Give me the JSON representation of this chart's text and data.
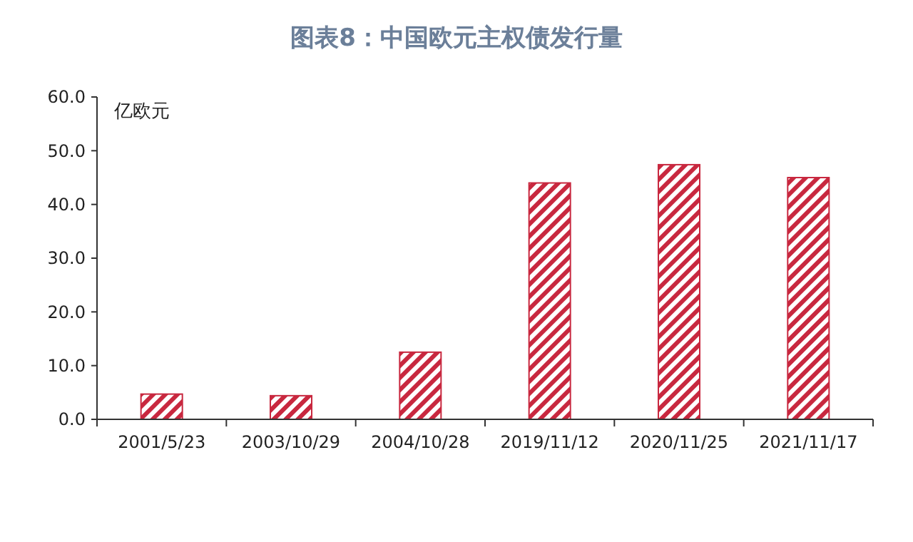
{
  "chart_data": {
    "type": "bar",
    "title": "图表8：中国欧元主权债发行量",
    "ylabel": "亿欧元",
    "categories": [
      "2001/5/23",
      "2003/10/29",
      "2004/10/28",
      "2019/11/12",
      "2020/11/25",
      "2021/11/17"
    ],
    "values": [
      4.7,
      4.4,
      12.5,
      44.0,
      47.4,
      45.0
    ],
    "color": "#c8283f",
    "ylim": [
      0,
      60
    ],
    "yticks": [
      {
        "value": 0,
        "label": "0.0"
      },
      {
        "value": 10,
        "label": "10.0"
      },
      {
        "value": 20,
        "label": "20.0"
      },
      {
        "value": 30,
        "label": "30.0"
      },
      {
        "value": 40,
        "label": "40.0"
      },
      {
        "value": 50,
        "label": "50.0"
      },
      {
        "value": 60,
        "label": "60.0"
      }
    ],
    "grid": false
  }
}
